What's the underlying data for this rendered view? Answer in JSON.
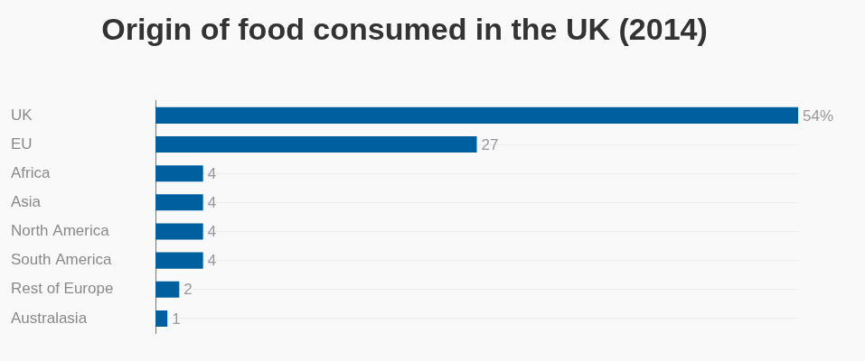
{
  "chart_data": {
    "type": "bar",
    "title": "Origin of food consumed in the UK (2014)",
    "orientation": "horizontal",
    "categories": [
      "UK",
      "EU",
      "Africa",
      "Asia",
      "North America",
      "South America",
      "Rest of Europe",
      "Australasia"
    ],
    "values": [
      54,
      27,
      4,
      4,
      4,
      4,
      2,
      1
    ],
    "value_labels": [
      "54%",
      "27",
      "4",
      "4",
      "4",
      "4",
      "2",
      "1"
    ],
    "color": "#00609f",
    "xlim": [
      0,
      54
    ],
    "data_labels": true,
    "tick_labels": "y",
    "grid": true
  }
}
